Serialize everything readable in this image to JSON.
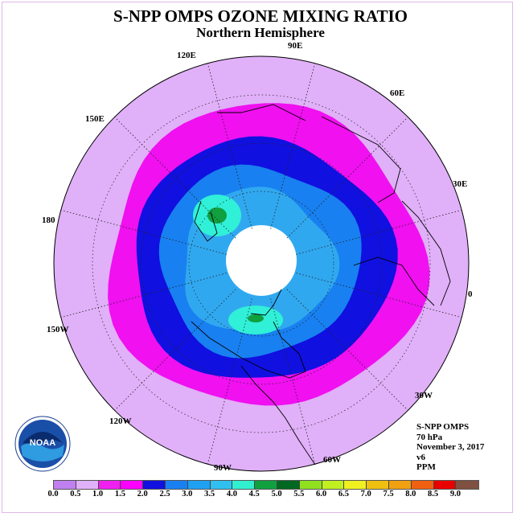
{
  "title": "S-NPP OMPS OZONE MIXING RATIO",
  "subtitle": "Northern Hemisphere",
  "longitude_labels": [
    "90E",
    "60E",
    "30E",
    "0",
    "30W",
    "60W",
    "90W",
    "120W",
    "150W",
    "180",
    "150E",
    "120E"
  ],
  "info": {
    "instrument": "S-NPP OMPS",
    "pressure": "70 hPa",
    "date": "November 3, 2017",
    "version": "v6",
    "units": "PPM"
  },
  "logo_text": "NOAA",
  "colorbar": {
    "colors": [
      "#c080f0",
      "#e0b0f8",
      "#f020f0",
      "#ff00ff",
      "#1010e0",
      "#1880f0",
      "#20a0f0",
      "#30c0f0",
      "#30f0d0",
      "#10a040",
      "#006820",
      "#90e020",
      "#c0f020",
      "#f0f020",
      "#f0c010",
      "#f0a010",
      "#f06010",
      "#e80000",
      "#805040"
    ],
    "tick_labels": [
      "0.0",
      "0.5",
      "1.0",
      "1.5",
      "2.0",
      "2.5",
      "3.0",
      "3.5",
      "4.0",
      "4.5",
      "5.0",
      "5.5",
      "6.0",
      "6.5",
      "7.0",
      "7.5",
      "8.0",
      "8.5",
      "9.0"
    ]
  },
  "fill_colors": {
    "outer": "#e0b0f8",
    "magenta": "#f010f0",
    "dark_blue": "#1010e0",
    "mid_blue": "#1880f0",
    "light_blue": "#30a8f0",
    "cyan": "#30f0d8",
    "green": "#10a040",
    "no_data": "#ffffff"
  }
}
